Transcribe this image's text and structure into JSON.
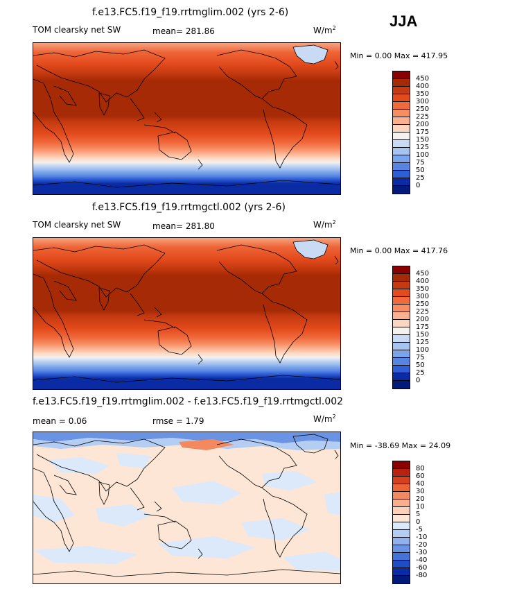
{
  "season": "JJA",
  "panels": [
    {
      "title": "f.e13.FC5.f19_f19.rrtmglim.002 (yrs 2-6)",
      "variable": "TOM clearsky net SW",
      "mean": "mean= 281.86",
      "rmse": "",
      "units": "W/m",
      "units_sup": "2",
      "minmax": "Min =   0.00 Max = 417.95",
      "levels": [
        "450",
        "400",
        "350",
        "300",
        "250",
        "225",
        "200",
        "175",
        "150",
        "125",
        "100",
        "75",
        "50",
        "25",
        "0"
      ],
      "colors": [
        "#8b0000",
        "#a52a05",
        "#c53a10",
        "#e34a1c",
        "#f06a3c",
        "#f68d63",
        "#fbb08f",
        "#fdd6bf",
        "#f4f1ee",
        "#c8daf4",
        "#a6c4f0",
        "#7ba5ea",
        "#5686e2",
        "#2f5fd6",
        "#0a2ba3",
        "#021a7a"
      ]
    },
    {
      "title": "f.e13.FC5.f19_f19.rrtmgctl.002 (yrs 2-6)",
      "variable": "TOM clearsky net SW",
      "mean": "mean= 281.80",
      "rmse": "",
      "units": "W/m",
      "units_sup": "2",
      "minmax": "Min =   0.00 Max = 417.76",
      "levels": [
        "450",
        "400",
        "350",
        "300",
        "250",
        "225",
        "200",
        "175",
        "150",
        "125",
        "100",
        "75",
        "50",
        "25",
        "0"
      ],
      "colors": [
        "#8b0000",
        "#a52a05",
        "#c53a10",
        "#e34a1c",
        "#f06a3c",
        "#f68d63",
        "#fbb08f",
        "#fdd6bf",
        "#f4f1ee",
        "#c8daf4",
        "#a6c4f0",
        "#7ba5ea",
        "#5686e2",
        "#2f5fd6",
        "#0a2ba3",
        "#021a7a"
      ]
    },
    {
      "title": "f.e13.FC5.f19_f19.rrtmglim.002 - f.e13.FC5.f19_f19.rrtmgctl.002",
      "variable": "",
      "mean": "mean =   0.06",
      "rmse": "rmse =   1.79",
      "units": "W/m",
      "units_sup": "2",
      "minmax": "Min = -38.69 Max =  24.09",
      "levels": [
        "80",
        "60",
        "40",
        "30",
        "20",
        "10",
        "5",
        "0",
        "-5",
        "-10",
        "-20",
        "-30",
        "-40",
        "-60",
        "-80"
      ],
      "colors": [
        "#8b0000",
        "#b82310",
        "#d8401c",
        "#ec6434",
        "#f38a5f",
        "#f9af8e",
        "#fdd2b8",
        "#fde6d6",
        "#dbe9fa",
        "#b4cdf3",
        "#8fb1ec",
        "#6a93e4",
        "#4473d9",
        "#1f4ec4",
        "#0a2ba3",
        "#021a7a"
      ]
    }
  ]
}
